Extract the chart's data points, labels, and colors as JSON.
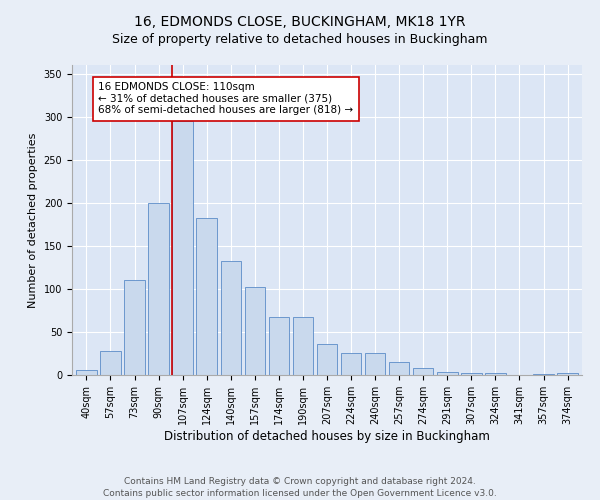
{
  "title": "16, EDMONDS CLOSE, BUCKINGHAM, MK18 1YR",
  "subtitle": "Size of property relative to detached houses in Buckingham",
  "xlabel": "Distribution of detached houses by size in Buckingham",
  "ylabel": "Number of detached properties",
  "categories": [
    "40sqm",
    "57sqm",
    "73sqm",
    "90sqm",
    "107sqm",
    "124sqm",
    "140sqm",
    "157sqm",
    "174sqm",
    "190sqm",
    "207sqm",
    "224sqm",
    "240sqm",
    "257sqm",
    "274sqm",
    "291sqm",
    "307sqm",
    "324sqm",
    "341sqm",
    "357sqm",
    "374sqm"
  ],
  "values": [
    6,
    28,
    110,
    200,
    295,
    182,
    132,
    102,
    67,
    67,
    36,
    26,
    26,
    15,
    8,
    4,
    2,
    2,
    0,
    1,
    2
  ],
  "bar_color": "#c9d9ed",
  "bar_edge_color": "#5b8cc8",
  "property_line_index": 4,
  "property_line_color": "#cc0000",
  "annotation_text": "16 EDMONDS CLOSE: 110sqm\n← 31% of detached houses are smaller (375)\n68% of semi-detached houses are larger (818) →",
  "annotation_box_color": "#ffffff",
  "annotation_box_edge_color": "#cc0000",
  "ylim": [
    0,
    360
  ],
  "yticks": [
    0,
    50,
    100,
    150,
    200,
    250,
    300,
    350
  ],
  "background_color": "#e8eef7",
  "plot_bg_color": "#dce6f5",
  "grid_color": "#ffffff",
  "footer_text": "Contains HM Land Registry data © Crown copyright and database right 2024.\nContains public sector information licensed under the Open Government Licence v3.0.",
  "title_fontsize": 10,
  "xlabel_fontsize": 8.5,
  "ylabel_fontsize": 8,
  "tick_fontsize": 7,
  "annotation_fontsize": 7.5,
  "footer_fontsize": 6.5
}
